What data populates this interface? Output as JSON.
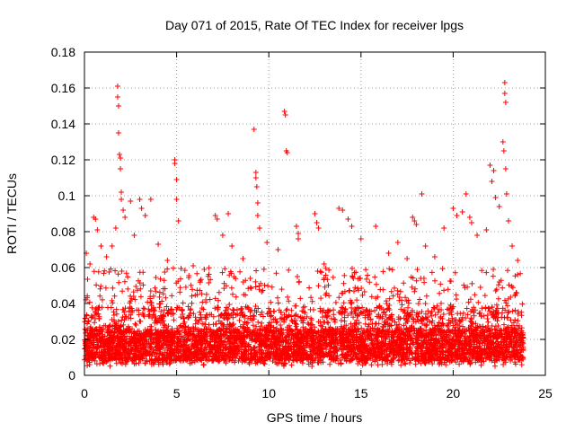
{
  "chart_data": {
    "type": "scatter",
    "title": "Day 071 of 2015, Rate Of TEC Index for receiver lpgs",
    "xlabel": "GPS time / hours",
    "ylabel": "ROTI / TECUs",
    "xlim": [
      0,
      25
    ],
    "ylim": [
      0,
      0.18
    ],
    "xticks": [
      0,
      5,
      10,
      15,
      20,
      25
    ],
    "xtick_labels": [
      "0",
      "5",
      "10",
      "15",
      "20",
      "25"
    ],
    "yticks": [
      0,
      0.02,
      0.04,
      0.06,
      0.08,
      0.1,
      0.12,
      0.14,
      0.16,
      0.18
    ],
    "ytick_labels": [
      "0",
      "0.02",
      "0.04",
      "0.06",
      "0.08",
      "0.1",
      "0.12",
      "0.14",
      "0.16",
      "0.18"
    ],
    "grid": true,
    "marker": "+",
    "color": "#ff0000",
    "series": [
      {
        "name": "ROTI",
        "note": "dense background cloud ~0.005-0.06 TECU/s over 0-23.8 h plus estimated notable peaks",
        "x_range": [
          0,
          23.8
        ],
        "background_band": [
          0.005,
          0.06
        ],
        "peaks": [
          {
            "x": 0.1,
            "y": 0.068
          },
          {
            "x": 0.3,
            "y": 0.062
          },
          {
            "x": 0.5,
            "y": 0.088
          },
          {
            "x": 0.6,
            "y": 0.087
          },
          {
            "x": 0.7,
            "y": 0.081
          },
          {
            "x": 0.9,
            "y": 0.072
          },
          {
            "x": 1.2,
            "y": 0.066
          },
          {
            "x": 1.5,
            "y": 0.072
          },
          {
            "x": 1.7,
            "y": 0.082
          },
          {
            "x": 1.8,
            "y": 0.161
          },
          {
            "x": 1.8,
            "y": 0.155
          },
          {
            "x": 1.85,
            "y": 0.15
          },
          {
            "x": 1.85,
            "y": 0.135
          },
          {
            "x": 1.9,
            "y": 0.123
          },
          {
            "x": 1.95,
            "y": 0.121
          },
          {
            "x": 1.95,
            "y": 0.115
          },
          {
            "x": 2.0,
            "y": 0.102
          },
          {
            "x": 2.0,
            "y": 0.098
          },
          {
            "x": 2.1,
            "y": 0.092
          },
          {
            "x": 2.2,
            "y": 0.088
          },
          {
            "x": 2.5,
            "y": 0.097
          },
          {
            "x": 2.7,
            "y": 0.078
          },
          {
            "x": 3.0,
            "y": 0.098
          },
          {
            "x": 3.1,
            "y": 0.093
          },
          {
            "x": 3.3,
            "y": 0.089
          },
          {
            "x": 3.6,
            "y": 0.098
          },
          {
            "x": 4.0,
            "y": 0.073
          },
          {
            "x": 4.5,
            "y": 0.064
          },
          {
            "x": 4.9,
            "y": 0.12
          },
          {
            "x": 4.9,
            "y": 0.118
          },
          {
            "x": 5.0,
            "y": 0.109
          },
          {
            "x": 5.0,
            "y": 0.098
          },
          {
            "x": 5.1,
            "y": 0.086
          },
          {
            "x": 5.9,
            "y": 0.061
          },
          {
            "x": 6.5,
            "y": 0.059
          },
          {
            "x": 7.1,
            "y": 0.089
          },
          {
            "x": 7.2,
            "y": 0.087
          },
          {
            "x": 7.5,
            "y": 0.078
          },
          {
            "x": 7.8,
            "y": 0.09
          },
          {
            "x": 8.0,
            "y": 0.072
          },
          {
            "x": 8.6,
            "y": 0.065
          },
          {
            "x": 9.2,
            "y": 0.137
          },
          {
            "x": 9.3,
            "y": 0.113
          },
          {
            "x": 9.3,
            "y": 0.11
          },
          {
            "x": 9.35,
            "y": 0.105
          },
          {
            "x": 9.4,
            "y": 0.096
          },
          {
            "x": 9.4,
            "y": 0.089
          },
          {
            "x": 9.5,
            "y": 0.082
          },
          {
            "x": 9.9,
            "y": 0.074
          },
          {
            "x": 10.5,
            "y": 0.07
          },
          {
            "x": 10.85,
            "y": 0.147
          },
          {
            "x": 10.9,
            "y": 0.145
          },
          {
            "x": 10.95,
            "y": 0.125
          },
          {
            "x": 11.0,
            "y": 0.124
          },
          {
            "x": 11.5,
            "y": 0.083
          },
          {
            "x": 11.6,
            "y": 0.079
          },
          {
            "x": 11.6,
            "y": 0.076
          },
          {
            "x": 12.5,
            "y": 0.09
          },
          {
            "x": 12.6,
            "y": 0.085
          },
          {
            "x": 12.7,
            "y": 0.082
          },
          {
            "x": 13.0,
            "y": 0.062
          },
          {
            "x": 13.8,
            "y": 0.093
          },
          {
            "x": 14.0,
            "y": 0.092
          },
          {
            "x": 14.3,
            "y": 0.087
          },
          {
            "x": 14.5,
            "y": 0.083
          },
          {
            "x": 15.0,
            "y": 0.076
          },
          {
            "x": 15.8,
            "y": 0.083
          },
          {
            "x": 16.5,
            "y": 0.068
          },
          {
            "x": 17.0,
            "y": 0.074
          },
          {
            "x": 17.5,
            "y": 0.065
          },
          {
            "x": 17.8,
            "y": 0.088
          },
          {
            "x": 17.9,
            "y": 0.086
          },
          {
            "x": 18.0,
            "y": 0.084
          },
          {
            "x": 18.3,
            "y": 0.101
          },
          {
            "x": 18.5,
            "y": 0.072
          },
          {
            "x": 19.0,
            "y": 0.066
          },
          {
            "x": 19.5,
            "y": 0.082
          },
          {
            "x": 20.0,
            "y": 0.093
          },
          {
            "x": 20.2,
            "y": 0.089
          },
          {
            "x": 20.5,
            "y": 0.091
          },
          {
            "x": 20.7,
            "y": 0.101
          },
          {
            "x": 20.9,
            "y": 0.088
          },
          {
            "x": 21.0,
            "y": 0.085
          },
          {
            "x": 21.3,
            "y": 0.078
          },
          {
            "x": 21.8,
            "y": 0.081
          },
          {
            "x": 22.0,
            "y": 0.117
          },
          {
            "x": 22.1,
            "y": 0.108
          },
          {
            "x": 22.2,
            "y": 0.114
          },
          {
            "x": 22.3,
            "y": 0.099
          },
          {
            "x": 22.5,
            "y": 0.094
          },
          {
            "x": 22.7,
            "y": 0.13
          },
          {
            "x": 22.75,
            "y": 0.125
          },
          {
            "x": 22.8,
            "y": 0.163
          },
          {
            "x": 22.8,
            "y": 0.157
          },
          {
            "x": 22.85,
            "y": 0.152
          },
          {
            "x": 22.85,
            "y": 0.115
          },
          {
            "x": 22.9,
            "y": 0.101
          },
          {
            "x": 23.0,
            "y": 0.086
          },
          {
            "x": 23.2,
            "y": 0.072
          },
          {
            "x": 23.5,
            "y": 0.064
          }
        ]
      }
    ]
  }
}
